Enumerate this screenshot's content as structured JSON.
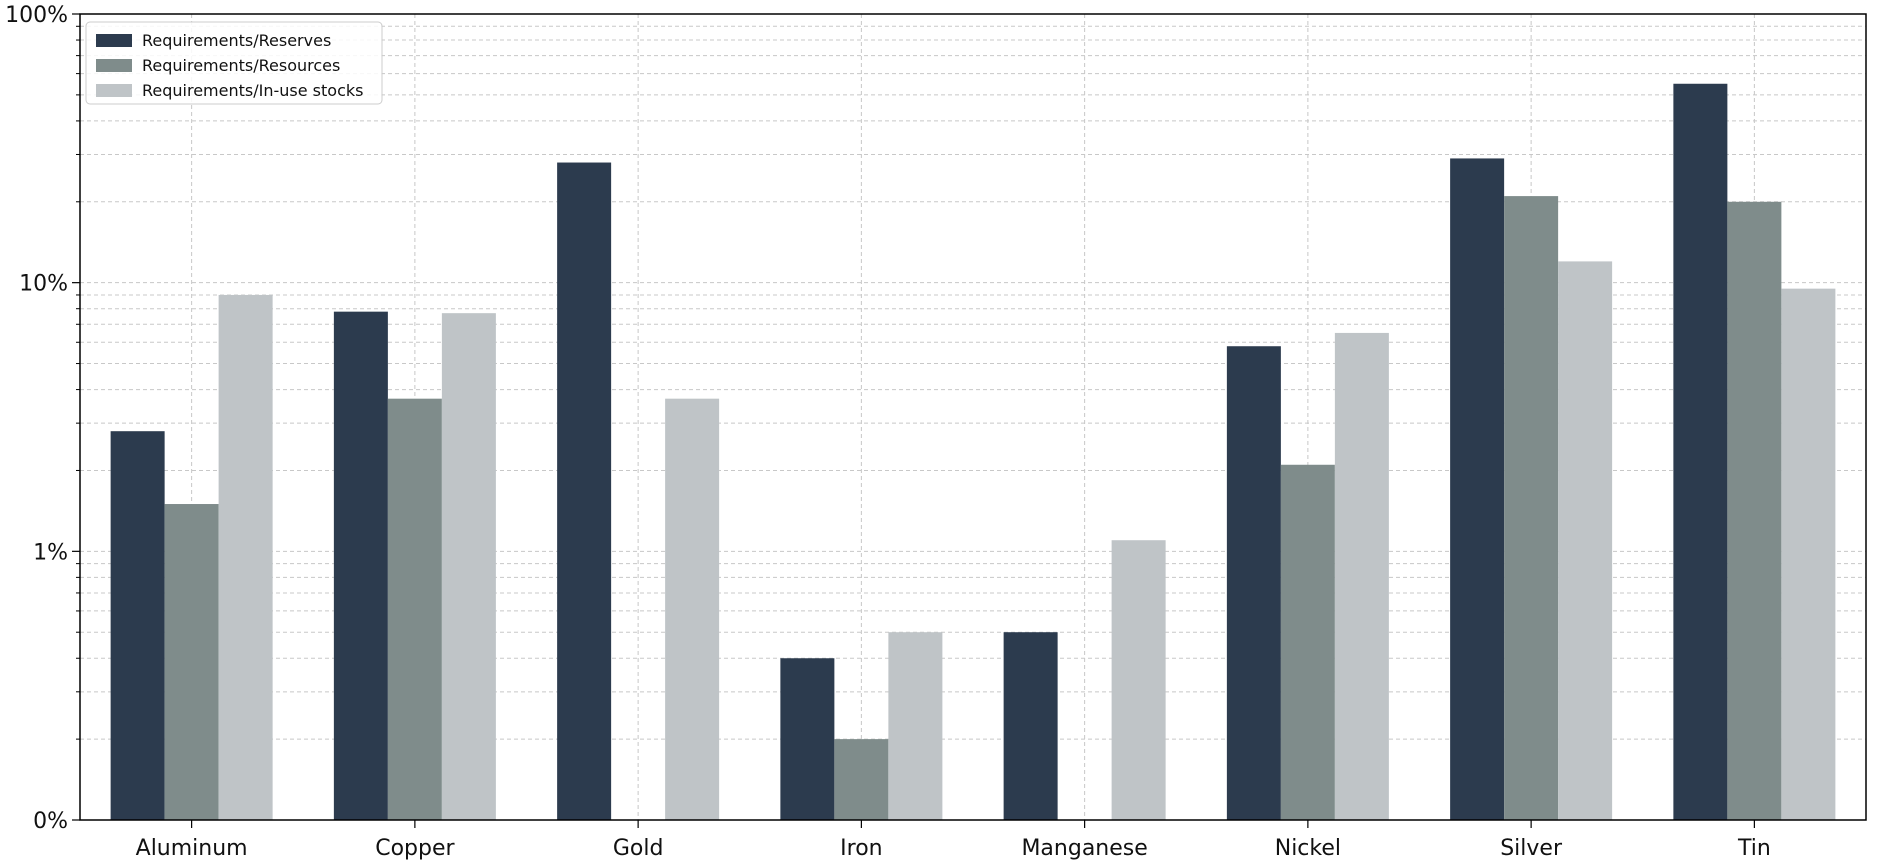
{
  "chart_data": {
    "type": "bar",
    "title": "",
    "xlabel": "",
    "ylabel": "",
    "y_scale": "log",
    "ylim": [
      0.1,
      100
    ],
    "y_ticks": [
      {
        "value": 100,
        "label": "100%"
      },
      {
        "value": 10,
        "label": "10%"
      },
      {
        "value": 1,
        "label": "1%"
      },
      {
        "value": 0.1,
        "label": "0%"
      }
    ],
    "grid": true,
    "legend_position": "top-left",
    "categories": [
      "Aluminum",
      "Copper",
      "Gold",
      "Iron",
      "Manganese",
      "Nickel",
      "Silver",
      "Tin"
    ],
    "series": [
      {
        "name": "Requirements/Reserves",
        "color": "#2c3b4e",
        "values": [
          2.8,
          7.8,
          28,
          0.4,
          0.5,
          5.8,
          29,
          55
        ]
      },
      {
        "name": "Requirements/Resources",
        "color": "#7f8c8b",
        "values": [
          1.5,
          3.7,
          null,
          0.2,
          null,
          2.1,
          21,
          20
        ]
      },
      {
        "name": "Requirements/In-use stocks",
        "color": "#bfc4c7",
        "values": [
          9.0,
          7.7,
          3.7,
          0.5,
          1.1,
          6.5,
          12,
          9.5
        ]
      }
    ]
  }
}
